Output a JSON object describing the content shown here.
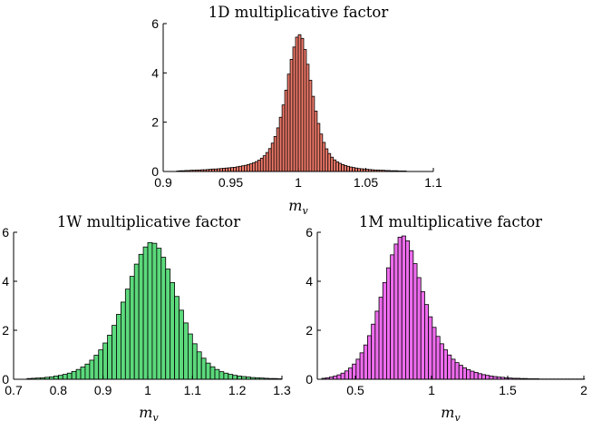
{
  "chart_data": [
    {
      "type": "bar",
      "title": "1D multiplicative factor",
      "xlabel": "m",
      "xlabel_sub": "v",
      "ylabel": "",
      "xlim": [
        0.9,
        1.1
      ],
      "ylim": [
        0,
        6
      ],
      "xticks": [
        "0.9",
        "0.95",
        "1",
        "1.05",
        "1.1"
      ],
      "xtick_values": [
        0.9,
        0.95,
        1.0,
        1.05,
        1.1
      ],
      "yticks": [
        "0",
        "2",
        "4",
        "6"
      ],
      "ytick_values": [
        0,
        2,
        4,
        6
      ],
      "bar_color": "#f07a6a",
      "bin_start": 0.91,
      "bin_width": 0.002,
      "values": [
        0.02,
        0.03,
        0.03,
        0.04,
        0.04,
        0.05,
        0.05,
        0.06,
        0.06,
        0.07,
        0.07,
        0.08,
        0.09,
        0.1,
        0.1,
        0.11,
        0.12,
        0.13,
        0.14,
        0.15,
        0.16,
        0.17,
        0.19,
        0.21,
        0.23,
        0.25,
        0.28,
        0.31,
        0.35,
        0.4,
        0.46,
        0.54,
        0.64,
        0.77,
        0.93,
        1.15,
        1.42,
        1.77,
        2.2,
        2.7,
        3.3,
        3.95,
        4.55,
        5.05,
        5.45,
        5.55,
        5.4,
        4.95,
        4.35,
        3.7,
        3.05,
        2.45,
        1.95,
        1.52,
        1.18,
        0.92,
        0.73,
        0.58,
        0.47,
        0.39,
        0.33,
        0.28,
        0.24,
        0.21,
        0.18,
        0.16,
        0.14,
        0.12,
        0.11,
        0.1,
        0.09,
        0.08,
        0.07,
        0.06,
        0.06,
        0.05,
        0.05,
        0.04,
        0.04,
        0.03,
        0.03,
        0.03,
        0.02,
        0.02,
        0.02
      ]
    },
    {
      "type": "bar",
      "title": "1W multiplicative factor",
      "xlabel": "m",
      "xlabel_sub": "v",
      "ylabel": "",
      "xlim": [
        0.7,
        1.3
      ],
      "ylim": [
        0,
        6
      ],
      "xticks": [
        "0.7",
        "0.8",
        "0.9",
        "1",
        "1.1",
        "1.2",
        "1.3"
      ],
      "xtick_values": [
        0.7,
        0.8,
        0.9,
        1.0,
        1.1,
        1.2,
        1.3
      ],
      "yticks": [
        "0",
        "2",
        "4",
        "6"
      ],
      "ytick_values": [
        0,
        2,
        4,
        6
      ],
      "bar_color": "#5cd97c",
      "bin_start": 0.73,
      "bin_width": 0.01,
      "values": [
        0.03,
        0.04,
        0.05,
        0.06,
        0.08,
        0.1,
        0.13,
        0.16,
        0.2,
        0.25,
        0.32,
        0.4,
        0.5,
        0.62,
        0.78,
        0.98,
        1.2,
        1.48,
        1.8,
        2.2,
        2.65,
        3.15,
        3.68,
        4.2,
        4.7,
        5.1,
        5.4,
        5.58,
        5.55,
        5.35,
        4.98,
        4.5,
        3.95,
        3.38,
        2.82,
        2.3,
        1.85,
        1.45,
        1.12,
        0.86,
        0.66,
        0.51,
        0.4,
        0.31,
        0.25,
        0.2,
        0.16,
        0.13,
        0.11,
        0.09,
        0.07,
        0.06,
        0.05,
        0.04,
        0.03,
        0.03,
        0.02
      ]
    },
    {
      "type": "bar",
      "title": "1M multiplicative factor",
      "xlabel": "m",
      "xlabel_sub": "v",
      "ylabel": "",
      "xlim": [
        0.25,
        2.0
      ],
      "ylim": [
        0,
        6
      ],
      "xticks": [
        "0.5",
        "1",
        "1.5",
        "2"
      ],
      "xtick_values": [
        0.5,
        1.0,
        1.5,
        2.0
      ],
      "yticks": [
        "0",
        "2",
        "4",
        "6"
      ],
      "ytick_values": [
        0,
        2,
        4,
        6
      ],
      "bar_color": "#ee6cee",
      "bin_start": 0.28,
      "bin_width": 0.025,
      "values": [
        0.04,
        0.06,
        0.09,
        0.13,
        0.18,
        0.25,
        0.34,
        0.46,
        0.62,
        0.82,
        1.08,
        1.4,
        1.78,
        2.25,
        2.78,
        3.35,
        3.95,
        4.55,
        5.08,
        5.52,
        5.8,
        5.85,
        5.65,
        5.25,
        4.72,
        4.15,
        3.58,
        3.05,
        2.55,
        2.12,
        1.75,
        1.45,
        1.2,
        0.99,
        0.82,
        0.68,
        0.57,
        0.47,
        0.39,
        0.33,
        0.28,
        0.23,
        0.19,
        0.16,
        0.13,
        0.11,
        0.09,
        0.08,
        0.06,
        0.05,
        0.04,
        0.04,
        0.03,
        0.03,
        0.02,
        0.02,
        0.02,
        0.01,
        0.01,
        0.01,
        0.01,
        0.01,
        0.01,
        0.01,
        0.01,
        0.01,
        0.01,
        0.01,
        0.01
      ]
    }
  ]
}
